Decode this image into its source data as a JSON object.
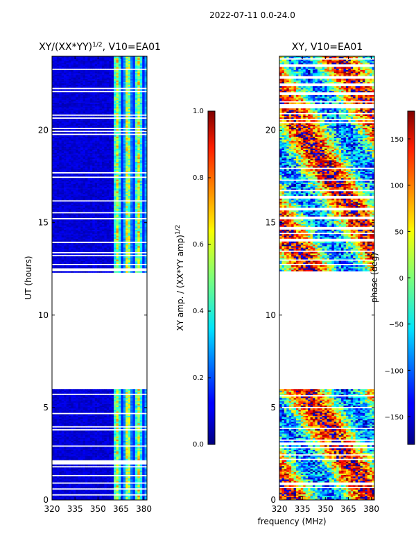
{
  "figure_title": "2022-07-11 0.0-24.0",
  "shared_xlabel": "frequency (MHz)",
  "chart_data": [
    {
      "type": "heatmap",
      "panel": "amplitude",
      "title": "XY/(XX*YY)",
      "title_exponent": "1/2",
      "title_suffix": ", V10=EA01",
      "xlabel": "frequency (MHz)",
      "ylabel": "UT (hours)",
      "xlim": [
        320,
        382
      ],
      "ylim": [
        0,
        24
      ],
      "xticks": [
        320,
        335,
        350,
        365,
        380
      ],
      "yticks": [
        0,
        5,
        10,
        15,
        20
      ],
      "data_coverage_hours": [
        [
          0,
          6
        ],
        [
          12.3,
          24
        ]
      ],
      "bright_band_mhz": [
        360,
        382
      ],
      "colorscale": "jet",
      "colorbar": {
        "label": "XY amp. / (XX*YY amp)",
        "label_exponent": "1/2",
        "range": [
          0.0,
          1.0
        ],
        "ticks": [
          "0.0",
          "0.2",
          "0.4",
          "0.6",
          "0.8",
          "1.0"
        ],
        "tick_values": [
          0.0,
          0.2,
          0.4,
          0.6,
          0.8,
          1.0
        ]
      }
    },
    {
      "type": "heatmap",
      "panel": "phase",
      "title": "XY, V10=EA01",
      "xlabel": "frequency (MHz)",
      "ylabel": "",
      "xlim": [
        320,
        382
      ],
      "ylim": [
        0,
        24
      ],
      "xticks": [
        320,
        335,
        350,
        365,
        380
      ],
      "yticks": [
        0,
        5,
        10,
        15,
        20
      ],
      "data_coverage_hours": [
        [
          0,
          6
        ],
        [
          12.3,
          24
        ]
      ],
      "colorscale": "jet",
      "colorbar": {
        "label": "phase (deg)",
        "range": [
          -180,
          180
        ],
        "ticks": [
          "−150",
          "−100",
          "−50",
          "0",
          "50",
          "100",
          "150"
        ],
        "tick_values": [
          -150,
          -100,
          -50,
          0,
          50,
          100,
          150
        ]
      }
    }
  ]
}
